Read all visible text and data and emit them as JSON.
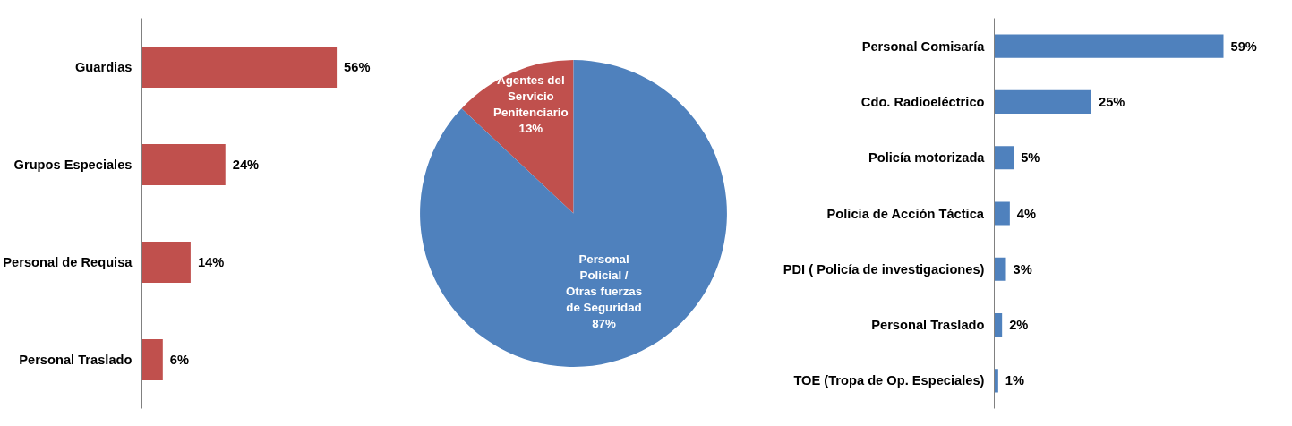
{
  "chart_data": [
    {
      "type": "bar",
      "orientation": "horizontal",
      "categories": [
        "Guardias",
        "Grupos Especiales",
        "Personal de Requisa",
        "Personal Traslado"
      ],
      "values": [
        56,
        24,
        14,
        6
      ],
      "value_labels": [
        "56%",
        "24%",
        "14%",
        "6%"
      ],
      "color": "#c0504d",
      "grid": false
    },
    {
      "type": "pie",
      "categories": [
        "Agentes del\nServicio\nPenitenciario",
        "Personal\nPolicial /\nOtras fuerzas\nde Seguridad"
      ],
      "values": [
        13,
        87
      ],
      "value_labels": [
        "13%",
        "87%"
      ],
      "colors": [
        "#c0504d",
        "#4f81bd"
      ]
    },
    {
      "type": "bar",
      "orientation": "horizontal",
      "categories": [
        "Personal Comisaría",
        "Cdo. Radioeléctrico",
        "Policía motorizada",
        "Policia de Acción Táctica",
        "PDI ( Policía de investigaciones)",
        "Personal Traslado",
        "TOE (Tropa de Op. Especiales)"
      ],
      "values": [
        59,
        25,
        5,
        4,
        3,
        2,
        1
      ],
      "value_labels": [
        "59%",
        "25%",
        "5%",
        "4%",
        "3%",
        "2%",
        "1%"
      ],
      "color": "#4f81bd",
      "grid": false
    }
  ]
}
